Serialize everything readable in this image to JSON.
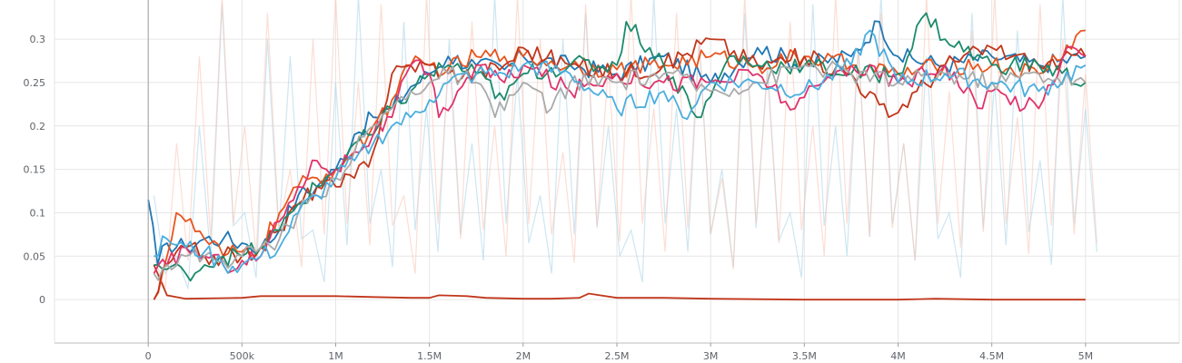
{
  "chart_data": {
    "type": "line",
    "title": "",
    "xlabel": "",
    "ylabel": "",
    "xlim": [
      -500000,
      5500000
    ],
    "ylim": [
      -0.05,
      0.345
    ],
    "x_ticks": [
      0,
      500000,
      1000000,
      1500000,
      2000000,
      2500000,
      3000000,
      3500000,
      4000000,
      4500000,
      5000000
    ],
    "x_tick_labels": [
      "0",
      "500k",
      "1M",
      "1.5M",
      "2M",
      "2.5M",
      "3M",
      "3.5M",
      "4M",
      "4.5M",
      "5M"
    ],
    "y_ticks": [
      0,
      0.05,
      0.1,
      0.15,
      0.2,
      0.25,
      0.3
    ],
    "y_tick_labels": [
      "0",
      "0.05",
      "0.1",
      "0.15",
      "0.2",
      "0.25",
      "0.3"
    ],
    "grid": true,
    "legend": "none",
    "raw_background": [
      {
        "color": "#a6d2e8",
        "values": [
          0.12,
          0.05,
          0.2,
          0.34,
          0.1,
          0.3,
          0.28,
          0.08,
          0.25,
          0.35,
          0.15,
          0.32,
          0.22,
          0.3,
          0.18,
          0.35,
          0.26,
          0.12,
          0.3,
          0.33,
          0.2,
          0.08,
          0.35,
          0.22,
          0.3,
          0.15,
          0.33,
          0.27,
          0.1,
          0.34,
          0.2,
          0.29,
          0.35,
          0.18,
          0.28,
          0.1,
          0.33,
          0.25,
          0.31,
          0.16,
          0.35,
          0.22
        ]
      },
      {
        "color": "#f9c3b0",
        "values": [
          0.05,
          0.18,
          0.28,
          0.35,
          0.2,
          0.33,
          0.15,
          0.3,
          0.35,
          0.25,
          0.34,
          0.12,
          0.35,
          0.28,
          0.32,
          0.2,
          0.35,
          0.3,
          0.17,
          0.34,
          0.27,
          0.35,
          0.22,
          0.33,
          0.3,
          0.14,
          0.35,
          0.26,
          0.32,
          0.2,
          0.35,
          0.29,
          0.33,
          0.18,
          0.35,
          0.24,
          0.31,
          0.35,
          0.21,
          0.34,
          0.3,
          0.26
        ]
      }
    ],
    "series": [
      {
        "color": "#1f77b4",
        "x": [
          0,
          50000,
          100000,
          200000,
          300000,
          400000,
          500000,
          600000,
          700000,
          800000,
          900000,
          1000000,
          1100000,
          1200000,
          1300000,
          1400000,
          1500000,
          1600000,
          1750000,
          1900000,
          2000000,
          2250000,
          2500000,
          2750000,
          3000000,
          3250000,
          3500000,
          3750000,
          3900000,
          4000000,
          4250000,
          4500000,
          4750000,
          5000000
        ],
        "values": [
          0.115,
          0.04,
          0.065,
          0.06,
          0.07,
          0.07,
          0.065,
          0.06,
          0.08,
          0.12,
          0.13,
          0.15,
          0.19,
          0.21,
          0.22,
          0.245,
          0.26,
          0.28,
          0.27,
          0.265,
          0.28,
          0.27,
          0.26,
          0.28,
          0.25,
          0.29,
          0.27,
          0.28,
          0.32,
          0.28,
          0.27,
          0.28,
          0.27,
          0.28
        ]
      },
      {
        "color": "#e8541e",
        "x": [
          30000,
          100000,
          150000,
          200000,
          300000,
          400000,
          500000,
          600000,
          700000,
          800000,
          900000,
          1000000,
          1100000,
          1200000,
          1300000,
          1400000,
          1500000,
          1600000,
          1750000,
          1900000,
          2000000,
          2250000,
          2500000,
          2750000,
          3000000,
          3250000,
          3500000,
          3750000,
          4000000,
          4250000,
          4500000,
          4750000,
          5000000
        ],
        "values": [
          0.0,
          0.05,
          0.1,
          0.09,
          0.07,
          0.05,
          0.055,
          0.06,
          0.1,
          0.13,
          0.14,
          0.15,
          0.17,
          0.2,
          0.23,
          0.27,
          0.27,
          0.265,
          0.28,
          0.28,
          0.28,
          0.27,
          0.265,
          0.27,
          0.28,
          0.27,
          0.28,
          0.27,
          0.26,
          0.27,
          0.27,
          0.26,
          0.31
        ]
      },
      {
        "color": "#c1361a",
        "x": [
          30000,
          100000,
          200000,
          300000,
          400000,
          500000,
          600000,
          700000,
          800000,
          900000,
          1000000,
          1100000,
          1200000,
          1300000,
          1400000,
          1500000,
          1600000,
          1750000,
          1900000,
          2000000,
          2250000,
          2500000,
          2750000,
          3000000,
          3250000,
          3500000,
          3750000,
          3950000,
          4100000,
          4250000,
          4500000,
          4750000,
          5000000
        ],
        "values": [
          0.0,
          0.04,
          0.06,
          0.05,
          0.05,
          0.05,
          0.06,
          0.08,
          0.11,
          0.13,
          0.13,
          0.14,
          0.17,
          0.26,
          0.27,
          0.27,
          0.26,
          0.26,
          0.27,
          0.29,
          0.27,
          0.26,
          0.27,
          0.3,
          0.27,
          0.28,
          0.26,
          0.21,
          0.24,
          0.27,
          0.29,
          0.27,
          0.28
        ]
      },
      {
        "color": "#1b8a6b",
        "x": [
          30000,
          100000,
          200000,
          300000,
          400000,
          500000,
          600000,
          700000,
          800000,
          900000,
          1000000,
          1100000,
          1200000,
          1300000,
          1400000,
          1500000,
          1600000,
          1750000,
          1900000,
          2000000,
          2250000,
          2500000,
          2550000,
          2750000,
          2950000,
          3100000,
          3250000,
          3500000,
          3750000,
          4000000,
          4150000,
          4250000,
          4500000,
          4750000,
          5000000
        ],
        "values": [
          0.04,
          0.035,
          0.03,
          0.04,
          0.05,
          0.05,
          0.06,
          0.08,
          0.11,
          0.13,
          0.15,
          0.18,
          0.19,
          0.22,
          0.24,
          0.26,
          0.27,
          0.26,
          0.23,
          0.26,
          0.27,
          0.27,
          0.32,
          0.27,
          0.21,
          0.28,
          0.27,
          0.27,
          0.26,
          0.26,
          0.33,
          0.3,
          0.27,
          0.27,
          0.25
        ]
      },
      {
        "color": "#e0336b",
        "x": [
          30000,
          100000,
          200000,
          300000,
          400000,
          500000,
          600000,
          700000,
          800000,
          900000,
          1000000,
          1100000,
          1200000,
          1300000,
          1400000,
          1500000,
          1550000,
          1650000,
          1750000,
          1900000,
          2000000,
          2250000,
          2500000,
          2750000,
          3000000,
          3250000,
          3450000,
          3600000,
          3750000,
          4000000,
          4250000,
          4450000,
          4500000,
          4750000,
          4900000,
          5000000
        ],
        "values": [
          0.03,
          0.04,
          0.06,
          0.05,
          0.04,
          0.045,
          0.05,
          0.09,
          0.13,
          0.16,
          0.15,
          0.17,
          0.19,
          0.21,
          0.27,
          0.26,
          0.21,
          0.24,
          0.27,
          0.25,
          0.27,
          0.24,
          0.26,
          0.25,
          0.25,
          0.26,
          0.22,
          0.25,
          0.27,
          0.25,
          0.27,
          0.22,
          0.24,
          0.22,
          0.29,
          0.28
        ]
      },
      {
        "color": "#aaaaaa",
        "x": [
          30000,
          100000,
          200000,
          300000,
          400000,
          500000,
          600000,
          700000,
          800000,
          900000,
          1000000,
          1100000,
          1200000,
          1300000,
          1400000,
          1500000,
          1600000,
          1750000,
          1850000,
          2000000,
          2150000,
          2250000,
          2500000,
          2750000,
          3000000,
          3250000,
          3500000,
          3750000,
          4000000,
          4250000,
          4500000,
          4750000,
          5000000
        ],
        "values": [
          0.03,
          0.04,
          0.05,
          0.05,
          0.045,
          0.05,
          0.06,
          0.07,
          0.1,
          0.12,
          0.14,
          0.17,
          0.2,
          0.22,
          0.24,
          0.25,
          0.26,
          0.25,
          0.21,
          0.25,
          0.22,
          0.25,
          0.25,
          0.26,
          0.24,
          0.25,
          0.27,
          0.26,
          0.25,
          0.26,
          0.25,
          0.26,
          0.25
        ]
      },
      {
        "color": "#4aaede",
        "x": [
          30000,
          100000,
          200000,
          300000,
          400000,
          500000,
          600000,
          700000,
          800000,
          900000,
          1000000,
          1100000,
          1200000,
          1300000,
          1400000,
          1500000,
          1600000,
          1750000,
          1900000,
          2000000,
          2250000,
          2500000,
          2750000,
          2850000,
          3000000,
          3250000,
          3500000,
          3750000,
          3850000,
          4000000,
          4250000,
          4500000,
          4750000,
          5000000
        ],
        "values": [
          0.05,
          0.07,
          0.06,
          0.055,
          0.04,
          0.04,
          0.05,
          0.06,
          0.1,
          0.12,
          0.14,
          0.16,
          0.18,
          0.2,
          0.21,
          0.23,
          0.25,
          0.26,
          0.26,
          0.27,
          0.26,
          0.22,
          0.24,
          0.21,
          0.25,
          0.25,
          0.24,
          0.27,
          0.31,
          0.25,
          0.26,
          0.25,
          0.24,
          0.27
        ]
      }
    ],
    "baseline_series": {
      "color": "#c1361a",
      "x": [
        30000,
        100000,
        200000,
        500000,
        600000,
        1000000,
        1200000,
        1400000,
        1500000,
        1550000,
        1700000,
        1800000,
        2000000,
        2150000,
        2300000,
        2350000,
        2500000,
        2750000,
        3000000,
        3500000,
        4000000,
        4200000,
        4500000,
        5000000
      ],
      "values": [
        0.04,
        0.005,
        0.001,
        0.002,
        0.004,
        0.004,
        0.003,
        0.002,
        0.002,
        0.005,
        0.004,
        0.002,
        0.001,
        0.001,
        0.002,
        0.007,
        0.002,
        0.002,
        0.001,
        0.0,
        0.0,
        0.001,
        0.0,
        0.0
      ]
    }
  }
}
